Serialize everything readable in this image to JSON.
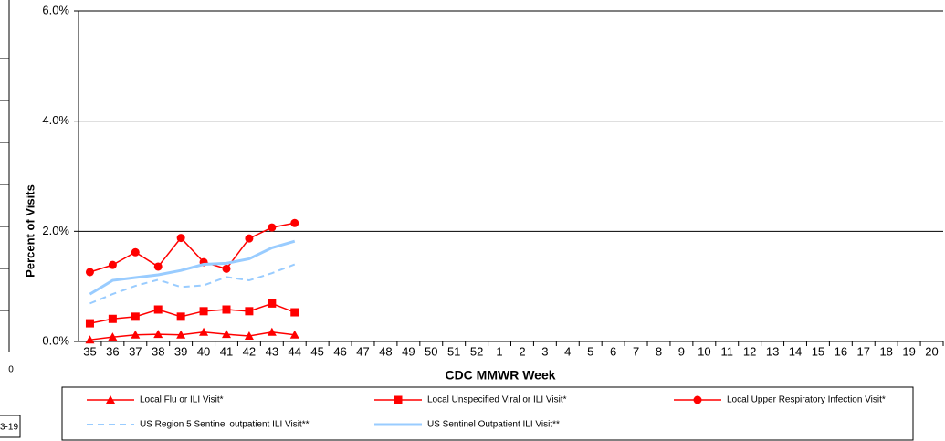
{
  "chart_data": {
    "type": "line",
    "y_axis_title": "Percent of Visits",
    "x_axis_title": "CDC MMWR Week",
    "categories": [
      "35",
      "36",
      "37",
      "38",
      "39",
      "40",
      "41",
      "42",
      "43",
      "44",
      "45",
      "46",
      "47",
      "48",
      "49",
      "50",
      "51",
      "52",
      "1",
      "2",
      "3",
      "4",
      "5",
      "6",
      "7",
      "8",
      "9",
      "10",
      "11",
      "12",
      "13",
      "14",
      "15",
      "16",
      "17",
      "18",
      "19",
      "20"
    ],
    "ylim": [
      0,
      6
    ],
    "yticks": [
      {
        "value": 0,
        "label": "0.0%"
      },
      {
        "value": 2,
        "label": "2.0%"
      },
      {
        "value": 4,
        "label": "4.0%"
      },
      {
        "value": 6,
        "label": "6.0%"
      }
    ],
    "grid": true,
    "legend": "bottom",
    "series": [
      {
        "name": "Local Flu or ILI Visit*",
        "color": "#ff0000",
        "marker": "triangle",
        "dash": false,
        "width": 1.5,
        "values": [
          0.03,
          0.08,
          0.12,
          0.13,
          0.12,
          0.17,
          0.13,
          0.1,
          0.17,
          0.12,
          null,
          null,
          null,
          null,
          null,
          null,
          null,
          null,
          null,
          null,
          null,
          null,
          null,
          null,
          null,
          null,
          null,
          null,
          null,
          null,
          null,
          null,
          null,
          null,
          null,
          null,
          null,
          null
        ]
      },
      {
        "name": "Local Unspecified Viral or ILI Visit*",
        "color": "#ff0000",
        "marker": "square",
        "dash": false,
        "width": 1.5,
        "values": [
          0.33,
          0.41,
          0.45,
          0.58,
          0.45,
          0.55,
          0.58,
          0.55,
          0.69,
          0.53,
          null,
          null,
          null,
          null,
          null,
          null,
          null,
          null,
          null,
          null,
          null,
          null,
          null,
          null,
          null,
          null,
          null,
          null,
          null,
          null,
          null,
          null,
          null,
          null,
          null,
          null,
          null,
          null
        ]
      },
      {
        "name": "Local Upper Respiratory Infection Visit*",
        "color": "#ff0000",
        "marker": "circle",
        "dash": false,
        "width": 1.5,
        "values": [
          1.26,
          1.39,
          1.62,
          1.36,
          1.88,
          1.44,
          1.32,
          1.87,
          2.07,
          2.15,
          null,
          null,
          null,
          null,
          null,
          null,
          null,
          null,
          null,
          null,
          null,
          null,
          null,
          null,
          null,
          null,
          null,
          null,
          null,
          null,
          null,
          null,
          null,
          null,
          null,
          null,
          null,
          null
        ]
      },
      {
        "name": "US Region 5 Sentinel outpatient ILI Visit**",
        "color": "#99ccff",
        "marker": "none",
        "dash": true,
        "width": 2,
        "values": [
          0.69,
          0.86,
          1.01,
          1.12,
          0.99,
          1.02,
          1.17,
          1.11,
          1.24,
          1.4,
          null,
          null,
          null,
          null,
          null,
          null,
          null,
          null,
          null,
          null,
          null,
          null,
          null,
          null,
          null,
          null,
          null,
          null,
          null,
          null,
          null,
          null,
          null,
          null,
          null,
          null,
          null,
          null
        ]
      },
      {
        "name": "US Sentinel Outpatient ILI Visit**",
        "color": "#99ccff",
        "marker": "none",
        "dash": false,
        "width": 3,
        "values": [
          0.86,
          1.11,
          1.16,
          1.21,
          1.29,
          1.4,
          1.42,
          1.5,
          1.7,
          1.82,
          null,
          null,
          null,
          null,
          null,
          null,
          null,
          null,
          null,
          null,
          null,
          null,
          null,
          null,
          null,
          null,
          null,
          null,
          null,
          null,
          null,
          null,
          null,
          null,
          null,
          null,
          null,
          null
        ]
      }
    ]
  },
  "edge_fragment": {
    "texts": [
      "0",
      "3-19"
    ]
  }
}
